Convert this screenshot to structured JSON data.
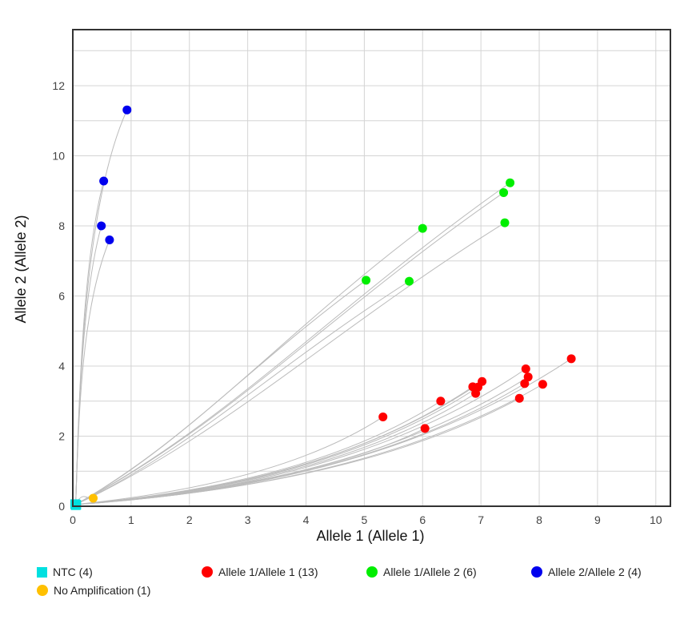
{
  "chart_data": {
    "type": "scatter",
    "xlabel": "Allele 1 (Allele 1)",
    "ylabel": "Allele 2 (Allele 2)",
    "xlim": [
      0,
      10.25
    ],
    "ylim": [
      0,
      13.6
    ],
    "xticks": [
      0,
      1,
      2,
      3,
      4,
      5,
      6,
      7,
      8,
      9,
      10
    ],
    "yticks": [
      0,
      2,
      4,
      6,
      8,
      10,
      12
    ],
    "grid": true,
    "legend_position": "bottom",
    "series": [
      {
        "name": "NTC (4)",
        "color": "#00e0e0",
        "marker": "square",
        "points": [
          [
            0.05,
            0.05
          ],
          [
            0.06,
            0.04
          ],
          [
            0.04,
            0.06
          ],
          [
            0.05,
            0.03
          ]
        ]
      },
      {
        "name": "Allele 1/Allele 1 (13)",
        "color": "#ff0000",
        "marker": "circle",
        "points": [
          [
            5.32,
            2.55
          ],
          [
            6.04,
            2.22
          ],
          [
            6.31,
            3.0
          ],
          [
            6.86,
            3.41
          ],
          [
            6.91,
            3.22
          ],
          [
            6.95,
            3.4
          ],
          [
            7.02,
            3.56
          ],
          [
            7.66,
            3.08
          ],
          [
            7.75,
            3.5
          ],
          [
            7.77,
            3.92
          ],
          [
            7.81,
            3.69
          ],
          [
            8.06,
            3.48
          ],
          [
            8.55,
            4.21
          ]
        ]
      },
      {
        "name": "Allele 1/Allele 2 (6)",
        "color": "#00ee00",
        "marker": "circle",
        "points": [
          [
            5.03,
            6.45
          ],
          [
            5.77,
            6.42
          ],
          [
            6.0,
            7.93
          ],
          [
            7.39,
            8.95
          ],
          [
            7.41,
            8.09
          ],
          [
            7.5,
            9.23
          ]
        ]
      },
      {
        "name": "Allele 2/Allele 2 (4)",
        "color": "#0000ee",
        "marker": "circle",
        "points": [
          [
            0.93,
            11.31
          ],
          [
            0.53,
            9.28
          ],
          [
            0.49,
            8.0
          ],
          [
            0.63,
            7.6
          ]
        ]
      },
      {
        "name": "No Amplification (1)",
        "color": "#ffc000",
        "marker": "circle",
        "points": [
          [
            0.35,
            0.23
          ]
        ]
      }
    ]
  },
  "legend": [
    {
      "label": "NTC (4)",
      "color": "#00e0e0",
      "shape": "square"
    },
    {
      "label": "Allele 1/Allele 1 (13)",
      "color": "#ff0000",
      "shape": "circle"
    },
    {
      "label": "Allele 1/Allele 2 (6)",
      "color": "#00ee00",
      "shape": "circle"
    },
    {
      "label": "Allele 2/Allele 2 (4)",
      "color": "#0000ee",
      "shape": "circle"
    },
    {
      "label": "No Amplification (1)",
      "color": "#ffc000",
      "shape": "circle"
    }
  ]
}
